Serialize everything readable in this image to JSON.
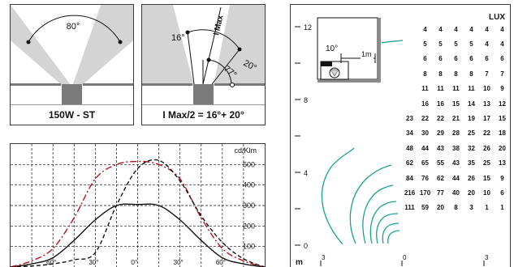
{
  "panel_left": {
    "angle_label": "80°",
    "caption": "150W - ST"
  },
  "panel_middle": {
    "angle_left_label": "16°",
    "imax_label": "I Max",
    "angle_right_label": "20°",
    "angle_bottom_label": "77°",
    "caption": "I Max/2 = 16°+ 20°"
  },
  "polar_chart": {
    "unit_label": "cd/Klm"
  },
  "isolux": {
    "lux_label": "LUX",
    "m_label": "m",
    "inset_angle_label": "10°",
    "inset_distance_label": "1m",
    "y_ticks": [
      "12",
      "8",
      "4",
      "0"
    ],
    "x_ticks": [
      "3",
      "0",
      "3"
    ]
  },
  "chart_data": {
    "type": "line",
    "x": [
      -90,
      -75,
      -60,
      -45,
      -30,
      -15,
      0,
      15,
      30,
      45,
      60,
      75,
      90
    ],
    "x_tick_labels": [
      "60°",
      "30°",
      "0°",
      "30°",
      "60°"
    ],
    "y_ticks": [
      100,
      200,
      300,
      400,
      500
    ],
    "ylabel": "cd/Klm",
    "ylim": [
      0,
      600
    ],
    "grid": true,
    "series": [
      {
        "style": "solid",
        "color": "#111111",
        "values": [
          0,
          15,
          45,
          130,
          230,
          300,
          305,
          300,
          230,
          130,
          45,
          15,
          0
        ]
      },
      {
        "style": "dashdot",
        "color": "#b3121f",
        "values": [
          0,
          30,
          90,
          240,
          430,
          500,
          515,
          500,
          430,
          240,
          90,
          30,
          0
        ]
      },
      {
        "style": "dashed",
        "color": "#111111",
        "values": [
          0,
          5,
          15,
          35,
          70,
          300,
          480,
          520,
          420,
          250,
          120,
          40,
          0
        ]
      }
    ]
  },
  "lux_table": [
    [
      "4",
      "4",
      "4",
      "4",
      "4",
      "4"
    ],
    [
      "5",
      "5",
      "5",
      "5",
      "4",
      "4"
    ],
    [
      "6",
      "6",
      "6",
      "6",
      "6",
      "6"
    ],
    [
      "8",
      "8",
      "8",
      "8",
      "7",
      "7"
    ],
    [
      "11",
      "11",
      "11",
      "11",
      "10",
      "9"
    ],
    [
      "16",
      "16",
      "15",
      "14",
      "13",
      "12"
    ],
    [
      "23",
      "22",
      "22",
      "21",
      "19",
      "17",
      "15"
    ],
    [
      "34",
      "30",
      "29",
      "28",
      "25",
      "22",
      "18"
    ],
    [
      "48",
      "44",
      "43",
      "38",
      "32",
      "26",
      "20"
    ],
    [
      "62",
      "65",
      "55",
      "43",
      "35",
      "25",
      "13"
    ],
    [
      "84",
      "76",
      "62",
      "44",
      "26",
      "15",
      "9"
    ],
    [
      "216",
      "170",
      "77",
      "40",
      "20",
      "10",
      "6"
    ],
    [
      "111",
      "59",
      "20",
      "8",
      "3",
      "1",
      "1"
    ]
  ],
  "colors": {
    "gray_fill": "#d4d4d4",
    "lamp": "#7a7a7a",
    "isolux_line": "#1aa391",
    "accent_red": "#b3121f"
  }
}
